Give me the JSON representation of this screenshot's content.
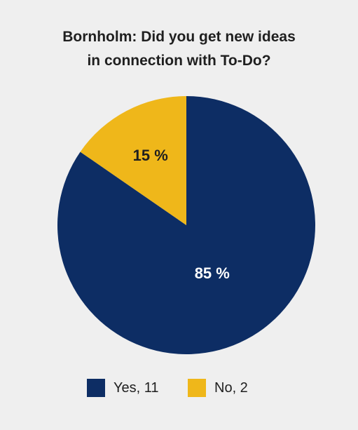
{
  "chart_data": {
    "type": "pie",
    "title_lines": [
      "Bornholm: Did you get new ideas",
      "in connection with To-Do?"
    ],
    "slices": [
      {
        "label": "Yes, 11",
        "value": 11,
        "percent_label": "85 %",
        "color": "#0d2d64"
      },
      {
        "label": "No, 2",
        "value": 2,
        "percent_label": "15 %",
        "color": "#efb71a"
      }
    ],
    "legend_position": "bottom"
  },
  "colors": {
    "background": "#efefef",
    "yes": "#0d2d64",
    "no": "#efb71a",
    "label_yes": "#ffffff",
    "label_no": "#1f1f1f"
  }
}
